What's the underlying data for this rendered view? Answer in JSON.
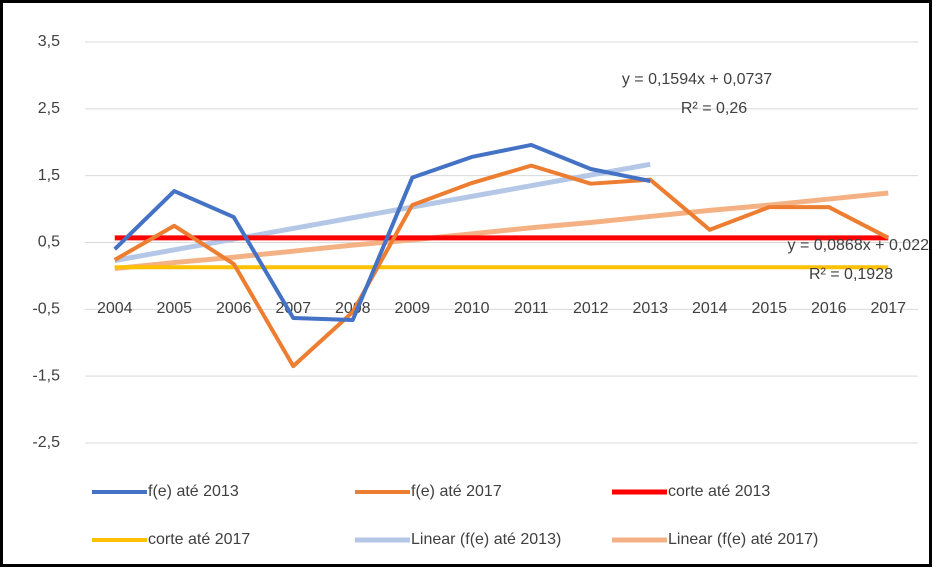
{
  "chart_data": {
    "type": "line",
    "categories": [
      "2004",
      "2005",
      "2006",
      "2007",
      "2008",
      "2009",
      "2010",
      "2011",
      "2012",
      "2013",
      "2014",
      "2015",
      "2016",
      "2017"
    ],
    "series": [
      {
        "name": "f(e) até 2013",
        "color": "#4472c4",
        "width": 4,
        "values": [
          0.4,
          1.27,
          0.88,
          -0.63,
          -0.66,
          1.47,
          1.78,
          1.96,
          1.6,
          1.42,
          null,
          null,
          null,
          null
        ]
      },
      {
        "name": "f(e) até 2017",
        "color": "#ed7d31",
        "width": 4,
        "values": [
          0.24,
          0.75,
          0.18,
          -1.35,
          -0.54,
          1.06,
          1.39,
          1.65,
          1.38,
          1.44,
          0.69,
          1.03,
          1.03,
          0.57
        ]
      },
      {
        "name": "corte até 2013",
        "color": "#ff0000",
        "width": 5,
        "values": [
          0.57,
          0.57,
          0.57,
          0.57,
          0.57,
          0.57,
          0.57,
          0.57,
          0.57,
          0.57,
          0.57,
          0.57,
          0.57,
          0.57
        ]
      },
      {
        "name": "corte até 2017",
        "color": "#ffc000",
        "width": 4,
        "values": [
          0.13,
          0.13,
          0.13,
          0.13,
          0.13,
          0.13,
          0.13,
          0.13,
          0.13,
          0.13,
          0.13,
          0.13,
          0.13,
          0.13
        ]
      },
      {
        "name": "Linear (f(e) até 2013)",
        "color": "#b4c7e7",
        "width": 5,
        "values": [
          0.23,
          0.39,
          0.55,
          0.71,
          0.87,
          1.03,
          1.19,
          1.35,
          1.51,
          1.67,
          null,
          null,
          null,
          null
        ]
      },
      {
        "name": "Linear (f(e) até 2017)",
        "color": "#f4b183",
        "width": 5,
        "values": [
          0.11,
          0.2,
          0.28,
          0.37,
          0.46,
          0.54,
          0.63,
          0.72,
          0.8,
          0.89,
          0.98,
          1.06,
          1.15,
          1.24
        ]
      }
    ],
    "ylim": [
      -2.5,
      3.5
    ],
    "yticks": [
      {
        "value": -2.5,
        "label": "-2,5"
      },
      {
        "value": -1.5,
        "label": "-1,5"
      },
      {
        "value": -0.5,
        "label": "-0,5"
      },
      {
        "value": 0.5,
        "label": "0,5"
      },
      {
        "value": 1.5,
        "label": "1,5"
      },
      {
        "value": 2.5,
        "label": "2,5"
      },
      {
        "value": 3.5,
        "label": "3,5"
      }
    ],
    "grid": true,
    "annotations": [
      "y = 0,1594x + 0,0737",
      "R² = 0,26",
      "y = 0,0868x + 0,022",
      "R² = 0,1928"
    ]
  }
}
